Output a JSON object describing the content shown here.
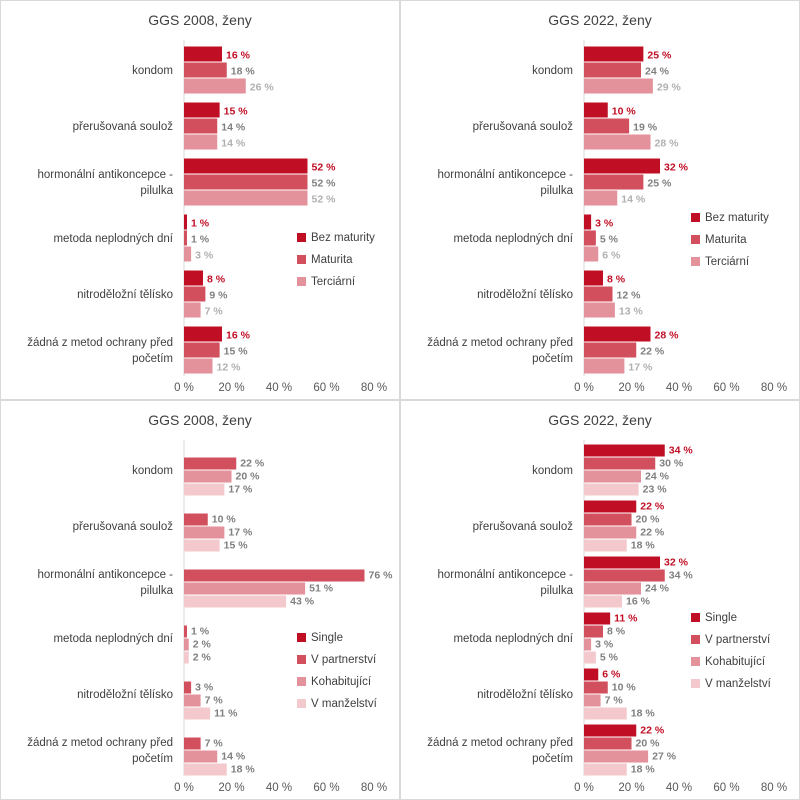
{
  "colors": {
    "s0": "#c00f25",
    "s1": "#d24f5d",
    "s2": "#e3929b",
    "s3": "#f3c9cd",
    "label_dark": "#c00f25",
    "label_mid": "#7f7f7f",
    "label_light": "#b0b0b0",
    "axis": "#595959",
    "grid": "#d9d9d9"
  },
  "chart_data": [
    {
      "type": "bar",
      "orientation": "horizontal",
      "title": "GGS 2008, ženy",
      "categories": [
        [
          "kondom"
        ],
        [
          "přerušovaná soulož"
        ],
        [
          "hormonální antikoncepce -",
          "pilulka"
        ],
        [
          "metoda neplodných dní"
        ],
        [
          "nitroděložní tělísko"
        ],
        [
          "žádná z metod ochrany před",
          "početím"
        ]
      ],
      "series": [
        {
          "name": "Bez maturity",
          "values": [
            16,
            15,
            52,
            1,
            8,
            16
          ],
          "labels": [
            "16 %",
            "15 %",
            "52 %",
            "1 %",
            "8 %",
            "16 %"
          ]
        },
        {
          "name": "Maturita",
          "values": [
            18,
            14,
            52,
            1,
            9,
            15
          ],
          "labels": [
            "18 %",
            "14 %",
            "52 %",
            "1 %",
            "9 %",
            "15 %"
          ]
        },
        {
          "name": "Terciární",
          "values": [
            26,
            14,
            52,
            3,
            7,
            12
          ],
          "labels": [
            "26 %",
            "14 %",
            "52 %",
            "3 %",
            "7 %",
            "12 %"
          ]
        }
      ],
      "xlim": [
        0,
        80
      ],
      "ticks": [
        "0 %",
        "20 %",
        "40 %",
        "60 %",
        "80 %"
      ],
      "legend": "right"
    },
    {
      "type": "bar",
      "orientation": "horizontal",
      "title": "GGS 2022, ženy",
      "categories": [
        [
          "kondom"
        ],
        [
          "přerušovaná soulož"
        ],
        [
          "hormonální antikoncepce -",
          "pilulka"
        ],
        [
          "metoda neplodných dní"
        ],
        [
          "nitroděložní tělísko"
        ],
        [
          "žádná z metod ochrany před",
          "početím"
        ]
      ],
      "series": [
        {
          "name": "Bez maturity",
          "values": [
            25,
            10,
            32,
            3,
            8,
            28
          ],
          "labels": [
            "25 %",
            "10 %",
            "32 %",
            "3 %",
            "8 %",
            "28 %"
          ]
        },
        {
          "name": "Maturita",
          "values": [
            24,
            19,
            25,
            5,
            12,
            22
          ],
          "labels": [
            "24 %",
            "19 %",
            "25 %",
            "5 %",
            "12 %",
            "22 %"
          ]
        },
        {
          "name": "Terciární",
          "values": [
            29,
            28,
            14,
            6,
            13,
            17
          ],
          "labels": [
            "29 %",
            "28 %",
            "14 %",
            "6 %",
            "13 %",
            "17 %"
          ]
        }
      ],
      "xlim": [
        0,
        80
      ],
      "ticks": [
        "0 %",
        "20 %",
        "40 %",
        "60 %",
        "80 %"
      ],
      "legend": "right"
    },
    {
      "type": "bar",
      "orientation": "horizontal",
      "title": "GGS 2008, ženy",
      "categories": [
        [
          "kondom"
        ],
        [
          "přerušovaná soulož"
        ],
        [
          "hormonální antikoncepce -",
          "pilulka"
        ],
        [
          "metoda neplodných dní"
        ],
        [
          "nitroděložní tělísko"
        ],
        [
          "žádná z metod ochrany před",
          "početím"
        ]
      ],
      "series": [
        {
          "name": "Single",
          "values": [
            0,
            0,
            0,
            0,
            0,
            0
          ],
          "labels": [
            "",
            "",
            "",
            "",
            "",
            ""
          ]
        },
        {
          "name": "V partnerství",
          "values": [
            22,
            10,
            76,
            1,
            3,
            7
          ],
          "labels": [
            "22 %",
            "10 %",
            "76 %",
            "1 %",
            "3 %",
            "7 %"
          ]
        },
        {
          "name": "Kohabitující",
          "values": [
            20,
            17,
            51,
            2,
            7,
            14
          ],
          "labels": [
            "20 %",
            "17 %",
            "51 %",
            "2 %",
            "7 %",
            "14 %"
          ]
        },
        {
          "name": "V manželství",
          "values": [
            17,
            15,
            43,
            2,
            11,
            18
          ],
          "labels": [
            "17 %",
            "15 %",
            "43 %",
            "2 %",
            "11 %",
            "18 %"
          ]
        }
      ],
      "xlim": [
        0,
        80
      ],
      "ticks": [
        "0 %",
        "20 %",
        "40 %",
        "60 %",
        "80 %"
      ],
      "legend": "right"
    },
    {
      "type": "bar",
      "orientation": "horizontal",
      "title": "GGS 2022, ženy",
      "categories": [
        [
          "kondom"
        ],
        [
          "přerušovaná soulož"
        ],
        [
          "hormonální antikoncepce -",
          "pilulka"
        ],
        [
          "metoda neplodných dní"
        ],
        [
          "nitroděložní tělísko"
        ],
        [
          "žádná z metod ochrany před",
          "početím"
        ]
      ],
      "series": [
        {
          "name": "Single",
          "values": [
            34,
            22,
            32,
            11,
            6,
            22
          ],
          "labels": [
            "34 %",
            "22 %",
            "32 %",
            "11 %",
            "6 %",
            "22 %"
          ]
        },
        {
          "name": "V partnerství",
          "values": [
            30,
            20,
            34,
            8,
            10,
            20
          ],
          "labels": [
            "30 %",
            "20 %",
            "34 %",
            "8 %",
            "10 %",
            "20 %"
          ]
        },
        {
          "name": "Kohabitující",
          "values": [
            24,
            22,
            24,
            3,
            7,
            27
          ],
          "labels": [
            "24 %",
            "22 %",
            "24 %",
            "3 %",
            "7 %",
            "27 %"
          ]
        },
        {
          "name": "V manželství",
          "values": [
            23,
            18,
            16,
            5,
            18,
            18
          ],
          "labels": [
            "23 %",
            "18 %",
            "16 %",
            "5 %",
            "18 %",
            "18 %"
          ]
        }
      ],
      "xlim": [
        0,
        80
      ],
      "ticks": [
        "0 %",
        "20 %",
        "40 %",
        "60 %",
        "80 %"
      ],
      "legend": "right"
    }
  ]
}
